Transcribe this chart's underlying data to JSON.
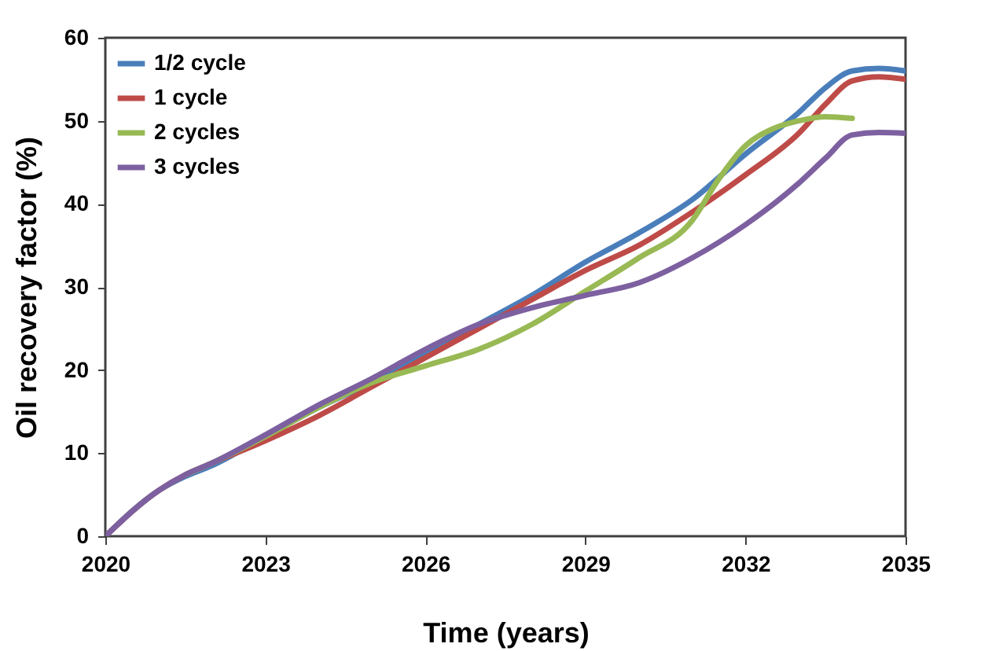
{
  "chart_data": {
    "type": "line",
    "xlabel": "Time (years)",
    "ylabel": "Oil recovery factor (%)",
    "xlim": [
      2020,
      2035
    ],
    "xticks": [
      2020,
      2023,
      2026,
      2029,
      2032,
      2035
    ],
    "ylim": [
      0,
      60
    ],
    "yticks": [
      0,
      10,
      20,
      30,
      40,
      50,
      60
    ],
    "grid": false,
    "legend": "top left",
    "marker": "none",
    "line_style": "solid",
    "series": [
      {
        "name": "1/2 cycle",
        "color": "#4a7ebb",
        "x": [
          2020,
          2021,
          2021.5,
          2022,
          2023,
          2024,
          2025,
          2026,
          2027,
          2028,
          2029,
          2030,
          2031,
          2032,
          2033,
          2033.5,
          2034,
          2034.5,
          2035
        ],
        "values": [
          0,
          5.5,
          7.2,
          8.5,
          12,
          15.5,
          18.5,
          22,
          25.5,
          29,
          33,
          36.5,
          40.5,
          46,
          51,
          54,
          56,
          56.3,
          56
        ]
      },
      {
        "name": "1 cycle",
        "color": "#be4b48",
        "x": [
          2020,
          2021,
          2021.5,
          2022,
          2023,
          2024,
          2025,
          2026,
          2027,
          2028,
          2029,
          2030,
          2031,
          2032,
          2033,
          2033.5,
          2034,
          2034.5,
          2035
        ],
        "values": [
          0,
          5.5,
          7.4,
          8.8,
          11.5,
          14.5,
          18,
          21.5,
          25,
          28.5,
          32,
          35,
          39,
          43.5,
          48.5,
          52,
          54.8,
          55.3,
          55
        ]
      },
      {
        "name": "2 cycles",
        "color": "#98b954",
        "x": [
          2021.5,
          2022,
          2023,
          2024,
          2025,
          2026,
          2027,
          2028,
          2029,
          2030,
          2031,
          2031.5,
          2032,
          2032.5,
          2033,
          2033.5,
          2034
        ],
        "values": [
          7.4,
          8.8,
          12,
          15.5,
          18.5,
          20.5,
          22.5,
          25.5,
          29.5,
          33.5,
          38,
          43,
          47,
          49,
          50,
          50.5,
          50.3
        ]
      },
      {
        "name": "3 cycles",
        "color": "#7d60a0",
        "x": [
          2020,
          2021,
          2021.5,
          2022,
          2023,
          2024,
          2025,
          2026,
          2027,
          2028,
          2029,
          2030,
          2031,
          2032,
          2033,
          2033.5,
          2034,
          2034.5,
          2035
        ],
        "values": [
          0,
          5.5,
          7.4,
          8.8,
          12.2,
          15.8,
          19,
          22.5,
          25.5,
          27.5,
          29,
          30.5,
          33.5,
          37.5,
          42.5,
          45.5,
          48.3,
          48.6,
          48.5
        ]
      }
    ]
  }
}
